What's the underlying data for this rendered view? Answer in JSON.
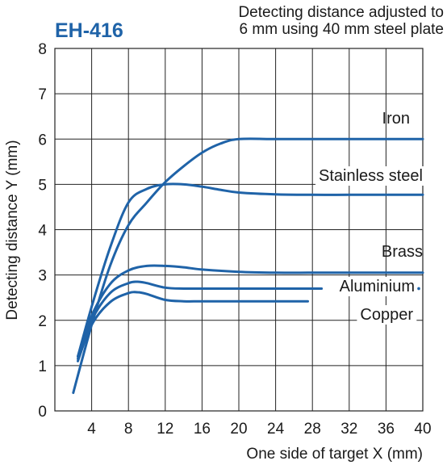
{
  "chart_data": {
    "type": "line",
    "title": "EH-416",
    "subtitle": [
      "Detecting distance adjusted to",
      "6 mm using 40 mm steel plate"
    ],
    "xlabel": "One side of target X (mm)",
    "ylabel": "Detecting distance Y (mm)",
    "xlim": [
      0,
      40
    ],
    "ylim": [
      0,
      8
    ],
    "x_ticks": [
      4,
      8,
      12,
      16,
      20,
      24,
      28,
      32,
      36,
      40
    ],
    "y_ticks": [
      0,
      1,
      2,
      3,
      4,
      5,
      6,
      7,
      8
    ],
    "x_tick_labels": [
      "4",
      "8",
      "12",
      "16",
      "20",
      "24",
      "28",
      "32",
      "36",
      "40"
    ],
    "y_tick_labels": [
      "0",
      "1",
      "2",
      "3",
      "4",
      "5",
      "6",
      "7",
      "8"
    ],
    "grid": true,
    "line_color": "#1f63a8",
    "series": [
      {
        "name": "Iron",
        "x": [
          2,
          4,
          6,
          8,
          10,
          12,
          14,
          16,
          18,
          20,
          24,
          28,
          32,
          36,
          40
        ],
        "y": [
          0.4,
          1.9,
          3.2,
          4.1,
          4.6,
          5.05,
          5.4,
          5.7,
          5.9,
          6.0,
          6.0,
          6.0,
          6.0,
          6.0,
          6.0
        ]
      },
      {
        "name": "Stainless steel",
        "x": [
          2.5,
          4,
          6,
          8,
          10,
          12,
          14,
          16,
          18,
          20,
          24,
          28,
          32,
          36,
          40
        ],
        "y": [
          1.2,
          2.3,
          3.6,
          4.6,
          4.9,
          5.0,
          5.0,
          4.95,
          4.88,
          4.82,
          4.78,
          4.77,
          4.77,
          4.77,
          4.77
        ]
      },
      {
        "name": "Brass",
        "x": [
          2.5,
          4,
          6,
          8,
          10,
          12,
          14,
          16,
          20,
          24,
          28,
          32,
          36,
          40
        ],
        "y": [
          1.2,
          2.1,
          2.8,
          3.1,
          3.2,
          3.2,
          3.17,
          3.12,
          3.07,
          3.05,
          3.05,
          3.05,
          3.05,
          3.05
        ]
      },
      {
        "name": "Aluminium",
        "x": [
          2.5,
          4,
          6,
          8,
          9,
          10,
          12,
          14,
          16,
          20,
          24,
          29
        ],
        "y": [
          1.15,
          2.0,
          2.6,
          2.82,
          2.85,
          2.82,
          2.72,
          2.7,
          2.7,
          2.7,
          2.7,
          2.7
        ]
      },
      {
        "name": "Copper",
        "x": [
          2.5,
          4,
          6,
          8,
          9,
          10,
          12,
          14,
          16,
          20,
          24,
          27.5
        ],
        "y": [
          1.1,
          1.9,
          2.4,
          2.6,
          2.62,
          2.58,
          2.45,
          2.42,
          2.42,
          2.42,
          2.42,
          2.42
        ]
      }
    ]
  }
}
